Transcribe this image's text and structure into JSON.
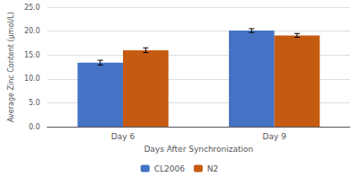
{
  "chart_data": {
    "type": "bar",
    "categories": [
      "Day 6",
      "Day 9"
    ],
    "series": [
      {
        "name": "CL2006",
        "color": "#4472C4",
        "values": [
          13.4,
          20.1
        ],
        "errors": [
          0.5,
          0.4
        ]
      },
      {
        "name": "N2",
        "color": "#C55A11",
        "values": [
          16.0,
          19.1
        ],
        "errors": [
          0.5,
          0.4
        ]
      }
    ],
    "xlabel": "Days After Synchronization",
    "ylabel": "Average Zinc Content (μmol/L)",
    "ylim": [
      0,
      25
    ],
    "yticks": [
      {
        "value": 0,
        "label": "0.0"
      },
      {
        "value": 5,
        "label": "5.0"
      },
      {
        "value": 10,
        "label": "10.0"
      },
      {
        "value": 15,
        "label": "15.0"
      },
      {
        "value": 20,
        "label": "20.0"
      },
      {
        "value": 25,
        "label": "25.0"
      }
    ],
    "grid": true,
    "legend": "bottom"
  }
}
